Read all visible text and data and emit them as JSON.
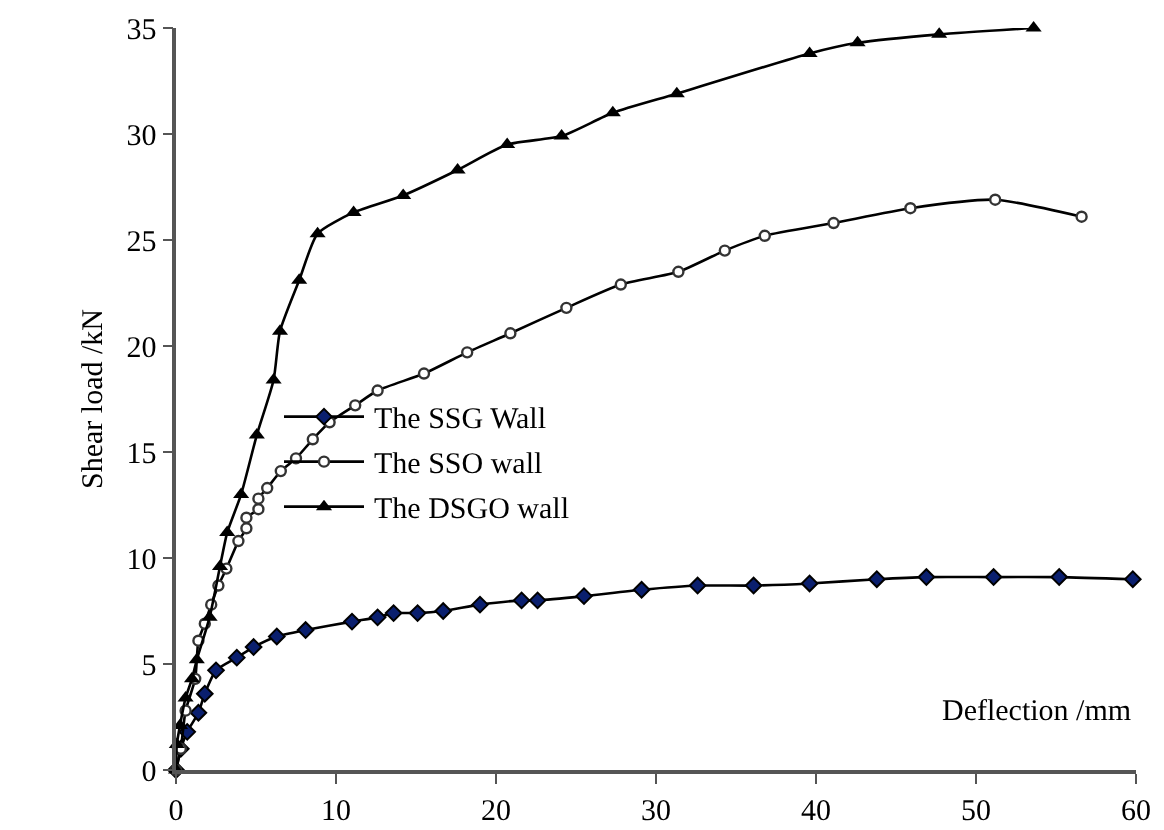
{
  "chart_data": {
    "type": "line",
    "xlabel": "Deflection /mm",
    "ylabel": "Shear load /kN",
    "xlim": [
      0,
      60
    ],
    "xticks": [
      0,
      10,
      20,
      30,
      40,
      50,
      60
    ],
    "ylim": [
      0,
      35
    ],
    "yticks": [
      0,
      5,
      10,
      15,
      20,
      25,
      30,
      35
    ],
    "grid": false,
    "legend": "center",
    "line_style": "solid",
    "series": [
      {
        "name": "The SSG Wall",
        "color": "#0a1f6e",
        "marker": "diamond",
        "x": [
          0,
          0.3,
          0.7,
          1.4,
          1.8,
          2.5,
          3.8,
          4.85,
          6.3,
          8.1,
          11,
          12.6,
          13.6,
          15.1,
          16.7,
          19,
          21.6,
          22.6,
          25.5,
          29.1,
          32.6,
          36.1,
          39.6,
          43.8,
          46.9,
          51.1,
          55.2,
          59.8
        ],
        "values": [
          0,
          1,
          1.8,
          2.7,
          3.6,
          4.7,
          5.3,
          5.8,
          6.3,
          6.6,
          7,
          7.2,
          7.4,
          7.4,
          7.5,
          7.8,
          8,
          8,
          8.2,
          8.5,
          8.7,
          8.7,
          8.8,
          9,
          9.1,
          9.1,
          9.1,
          9
        ]
      },
      {
        "name": "The SSO wall",
        "color": "#333333",
        "marker": "circle",
        "x": [
          0,
          0.3,
          0.6,
          1.2,
          1.4,
          1.8,
          2.2,
          2.65,
          3.15,
          3.9,
          4.4,
          4.4,
          5.15,
          5.15,
          5.7,
          6.55,
          7.5,
          8.55,
          9.6,
          11.2,
          12.6,
          15.5,
          18.2,
          20.9,
          24.4,
          27.8,
          31.4,
          34.3,
          36.8,
          41.1,
          45.9,
          51.2,
          56.6
        ],
        "values": [
          0,
          1,
          2.8,
          4.3,
          6.1,
          6.9,
          7.8,
          8.7,
          9.5,
          10.8,
          11.4,
          11.9,
          12.3,
          12.8,
          13.3,
          14.1,
          14.7,
          15.6,
          16.4,
          17.2,
          17.9,
          18.7,
          19.7,
          20.6,
          21.8,
          22.9,
          23.5,
          24.5,
          25.2,
          25.8,
          26.5,
          26.9,
          26.1
        ]
      },
      {
        "name": "The DSGO wall",
        "color": "#000000",
        "marker": "triangle",
        "x": [
          0,
          0.05,
          0.25,
          0.6,
          1,
          1.3,
          2.1,
          2.75,
          3.2,
          4.07,
          5.05,
          6.1,
          6.5,
          7.7,
          8.85,
          11.1,
          14.2,
          17.6,
          20.7,
          24.1,
          27.3,
          31.3,
          39.6,
          42.6,
          47.7,
          53.6
        ],
        "values": [
          0,
          1.2,
          2.1,
          3.4,
          4.3,
          5.2,
          7.2,
          9.6,
          11.2,
          13,
          15.8,
          18.4,
          20.7,
          23.1,
          25.3,
          26.3,
          27.1,
          28.3,
          29.5,
          29.9,
          31,
          31.9,
          33.8,
          34.3,
          34.7,
          35
        ]
      }
    ]
  }
}
